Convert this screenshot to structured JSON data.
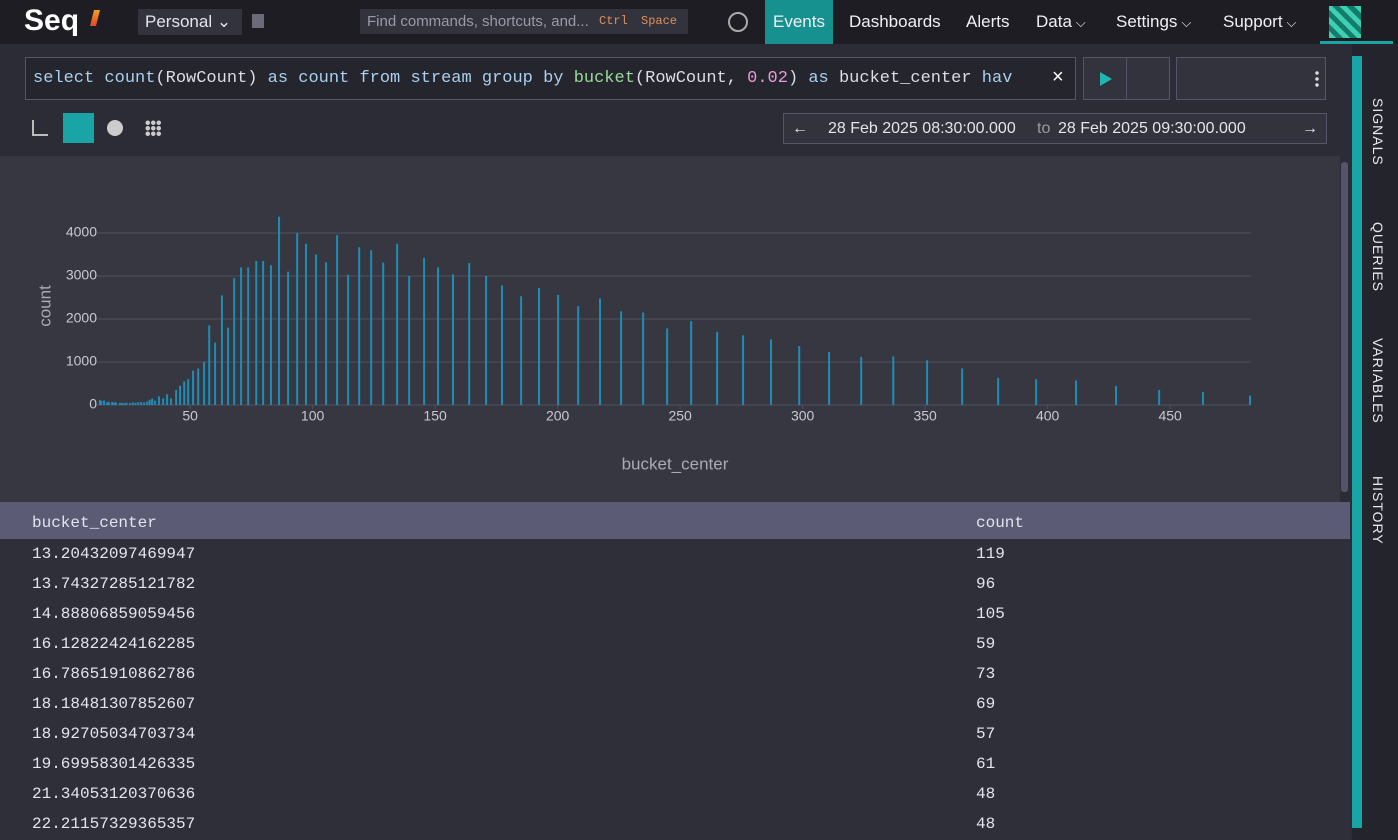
{
  "nav": {
    "logo": "Seq",
    "workspace": "Personal",
    "search": "Find commands, shortcuts, and...",
    "keys": [
      "Ctrl",
      "Space"
    ],
    "items": [
      "Events",
      "Dashboards",
      "Alerts",
      "Data",
      "Settings",
      "Support"
    ],
    "active": 0
  },
  "query": {
    "parts": [
      {
        "text": "select count",
        "color": "#a9cfee"
      },
      {
        "text": "(RowCount) ",
        "color": "#dcdce6"
      },
      {
        "text": "as count from stream group by ",
        "color": "#a9cfee"
      },
      {
        "text": "bucket",
        "color": "#9bd89b"
      },
      {
        "text": "(RowCount, ",
        "color": "#dcdce6"
      },
      {
        "text": "0.02",
        "color": "#e79ad6"
      },
      {
        "text": ") ",
        "color": "#dcdce6"
      },
      {
        "text": "as",
        "color": "#a9cfee"
      },
      {
        "text": " bucket_center ",
        "color": "#dcdce6"
      },
      {
        "text": "hav",
        "color": "#a9cfee"
      }
    ]
  },
  "range": {
    "from": "28 Feb 2025 08:30:00.000",
    "sep": "to",
    "to": "28 Feb 2025 09:30:00.000"
  },
  "sidebar": [
    "SIGNALS",
    "QUERIES",
    "VARIABLES",
    "HISTORY"
  ],
  "chart_data": {
    "type": "bar",
    "color": "#1e8db3",
    "xlabel": "bucket_center",
    "ylabel": "count",
    "grid": true,
    "x": [
      13.20432097469947,
      13.74327285121782,
      14.88806859059456,
      16.12822424162285,
      16.78651910862786,
      18.18481307852607,
      18.92705034703734,
      19.69958301426335,
      21.34053120370636,
      22.21157329365357,
      23.1,
      24.0,
      25.5,
      26.6,
      27.7,
      28.8,
      30,
      31.2,
      32.5,
      33.5,
      34.5,
      35.7,
      37.3,
      39,
      40.6,
      42.2,
      44.3,
      45.9,
      47.6,
      49.2,
      51.2,
      53.3,
      55.7,
      57.8,
      60.2,
      63,
      65.5,
      68,
      70.8,
      73.7,
      77,
      79.8,
      83,
      86.3,
      90,
      93.7,
      97.3,
      101.4,
      105.5,
      110,
      114.5,
      119,
      123.9,
      128.8,
      134.5,
      139.4,
      145.5,
      151.2,
      157.3,
      163.9,
      170.8,
      177.3,
      185.1,
      192.4,
      200.2,
      208.4,
      217.3,
      225.9,
      234.9,
      244.7,
      254.5,
      265.1,
      275.7,
      287.1,
      298.6,
      310.8,
      323.9,
      337,
      350.8,
      365.1,
      379.8,
      395.3,
      411.6,
      427.9,
      445.5,
      463.4,
      482.6
    ],
    "values": [
      119,
      96,
      105,
      59,
      73,
      69,
      57,
      61,
      48,
      48,
      40,
      55,
      45,
      60,
      50,
      65,
      70,
      60,
      80,
      120,
      150,
      100,
      200,
      150,
      250,
      150,
      350,
      450,
      550,
      600,
      800,
      850,
      1000,
      1850,
      1450,
      2550,
      1800,
      2950,
      3200,
      3200,
      3350,
      3350,
      3250,
      4380,
      3100,
      4000,
      3750,
      3500,
      3320,
      3950,
      3030,
      3670,
      3600,
      3310,
      3750,
      3000,
      3420,
      3200,
      3040,
      3300,
      3000,
      2780,
      2530,
      2720,
      2560,
      2300,
      2480,
      2180,
      2150,
      1780,
      1950,
      1700,
      1620,
      1530,
      1370,
      1230,
      1120,
      1130,
      1040,
      850,
      630,
      600,
      570,
      440,
      350,
      300,
      220
    ],
    "xlim": [
      12,
      483
    ],
    "xticks": [
      50,
      100,
      150,
      200,
      250,
      300,
      350,
      400,
      450
    ],
    "ylim": [
      0,
      4400
    ],
    "yticks": [
      0,
      1000,
      2000,
      3000,
      4000
    ]
  },
  "table": {
    "columns": [
      "bucket_center",
      "count"
    ],
    "rows": [
      [
        "13.20432097469947",
        "119"
      ],
      [
        "13.74327285121782",
        "96"
      ],
      [
        "14.88806859059456",
        "105"
      ],
      [
        "16.12822424162285",
        "59"
      ],
      [
        "16.78651910862786",
        "73"
      ],
      [
        "18.18481307852607",
        "69"
      ],
      [
        "18.92705034703734",
        "57"
      ],
      [
        "19.69958301426335",
        "61"
      ],
      [
        "21.34053120370636",
        "48"
      ],
      [
        "22.21157329365357",
        "48"
      ]
    ]
  }
}
